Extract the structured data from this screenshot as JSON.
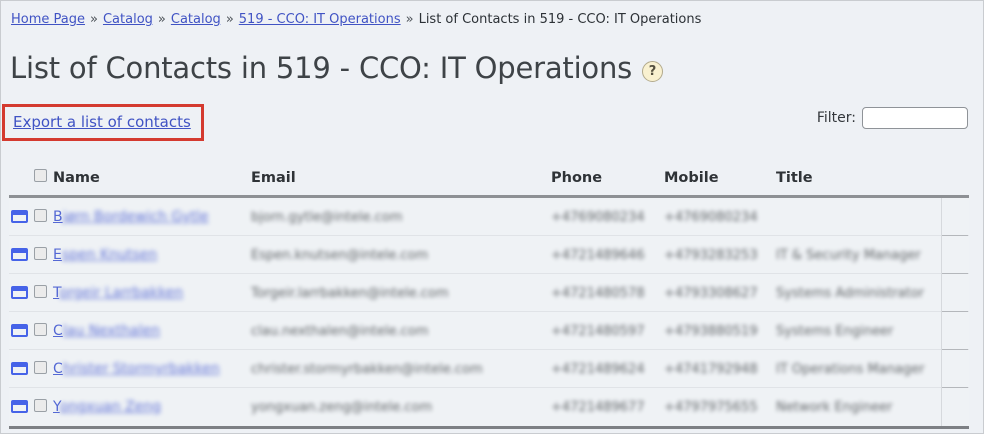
{
  "breadcrumb": {
    "separator": "»",
    "items": [
      {
        "label": "Home Page",
        "link": true
      },
      {
        "label": "Catalog",
        "link": true
      },
      {
        "label": "Catalog",
        "link": true
      },
      {
        "label": "519 - CCO: IT Operations",
        "link": true
      },
      {
        "label": "List of Contacts in 519 - CCO: IT Operations",
        "link": false
      }
    ]
  },
  "header": {
    "title": "List of Contacts in 519 - CCO: IT Operations",
    "help_icon_glyph": "?"
  },
  "actions": {
    "export_link": "Export a list of contacts",
    "filter_label": "Filter:",
    "filter_value": ""
  },
  "table": {
    "columns": [
      "Name",
      "Email",
      "Phone",
      "Mobile",
      "Title"
    ],
    "rows": [
      {
        "name": "Bjørn Bordewich Gytle",
        "email": "bjorn.gytle@intele.com",
        "phone": "+4769080234",
        "mobile": "+4769080234",
        "title": ""
      },
      {
        "name": "Espen Knutsen",
        "email": "Espen.knutsen@intele.com",
        "phone": "+4721489646",
        "mobile": "+4793283253",
        "title": "IT & Security Manager"
      },
      {
        "name": "Torgeir Larrbakken",
        "email": "Torgeir.larrbakken@intele.com",
        "phone": "+4721480578",
        "mobile": "+4793308627",
        "title": "Systems Administrator"
      },
      {
        "name": "Clau Nexthalen",
        "email": "clau.nexthalen@intele.com",
        "phone": "+4721480597",
        "mobile": "+4793880519",
        "title": "Systems Engineer"
      },
      {
        "name": "Christer Stormyrbakken",
        "email": "christer.stormyrbakken@intele.com",
        "phone": "+4721489624",
        "mobile": "+4741792948",
        "title": "IT Operations Manager"
      },
      {
        "name": "Yongxuan Zeng",
        "email": "yongxuan.zeng@intele.com",
        "phone": "+4721489677",
        "mobile": "+4797975655",
        "title": "Network Engineer"
      }
    ]
  },
  "colors": {
    "link_blue": "#4053c4",
    "name_link_blue": "#5468d4",
    "card_icon_blue": "#4663e8",
    "highlight_red": "#d43a2f",
    "help_icon_bg": "#f9f1d0",
    "page_bg": "#eef1f5",
    "divider_dark": "#8d9094"
  }
}
